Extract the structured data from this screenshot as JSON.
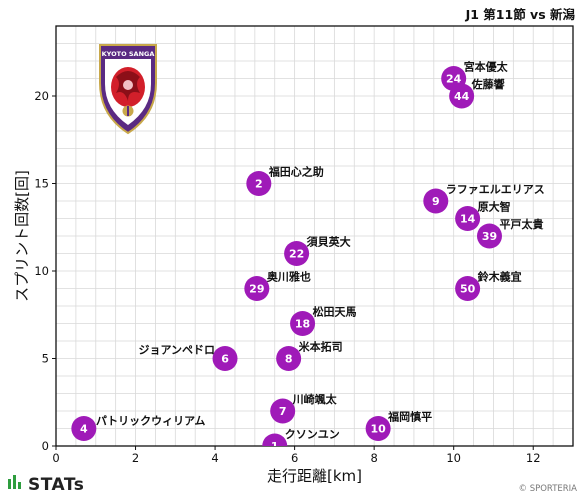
{
  "page_title": "J1 第11節 vs 新潟",
  "brand": {
    "name": "STATs",
    "copyright": "© SPORTERIA"
  },
  "logo": {
    "text": "KYOTO SANGA",
    "icon": "kyoto-sanga-crest-icon"
  },
  "colors": {
    "marker": "#9f1ab8",
    "grid": "#d9d9d9",
    "crest_purple": "#5a2a82",
    "crest_red": "#d21f2a"
  },
  "chart_data": {
    "type": "scatter",
    "xlabel": "走行距離[km]",
    "ylabel": "スプリント回数[回]",
    "xlim": [
      0,
      13
    ],
    "ylim": [
      0,
      24
    ],
    "xticks": [
      0,
      2,
      4,
      6,
      8,
      10,
      12
    ],
    "yticks": [
      0,
      5,
      10,
      15,
      20
    ],
    "grid": true,
    "points": [
      {
        "number": "24",
        "name": "宮本優太",
        "x": 10.0,
        "y": 21
      },
      {
        "number": "44",
        "name": "佐藤響",
        "x": 10.2,
        "y": 20
      },
      {
        "number": "2",
        "name": "福田心之助",
        "x": 5.1,
        "y": 15
      },
      {
        "number": "9",
        "name": "ラファエルエリアス",
        "x": 9.55,
        "y": 14
      },
      {
        "number": "14",
        "name": "原大智",
        "x": 10.35,
        "y": 13
      },
      {
        "number": "39",
        "name": "平戸太貴",
        "x": 10.9,
        "y": 12
      },
      {
        "number": "22",
        "name": "須貝英大",
        "x": 6.05,
        "y": 11
      },
      {
        "number": "29",
        "name": "奥川雅也",
        "x": 5.05,
        "y": 9
      },
      {
        "number": "50",
        "name": "鈴木義宜",
        "x": 10.35,
        "y": 9
      },
      {
        "number": "18",
        "name": "松田天馬",
        "x": 6.2,
        "y": 7
      },
      {
        "number": "6",
        "name": "ジョアンペドロ",
        "x": 4.25,
        "y": 5
      },
      {
        "number": "8",
        "name": "米本拓司",
        "x": 5.85,
        "y": 5
      },
      {
        "number": "7",
        "name": "川崎颯太",
        "x": 5.7,
        "y": 2
      },
      {
        "number": "4",
        "name": "パトリックウィリアム",
        "x": 0.7,
        "y": 1
      },
      {
        "number": "10",
        "name": "福岡慎平",
        "x": 8.1,
        "y": 1
      },
      {
        "number": "1",
        "name": "クソンユン",
        "x": 5.5,
        "y": 0
      }
    ]
  }
}
